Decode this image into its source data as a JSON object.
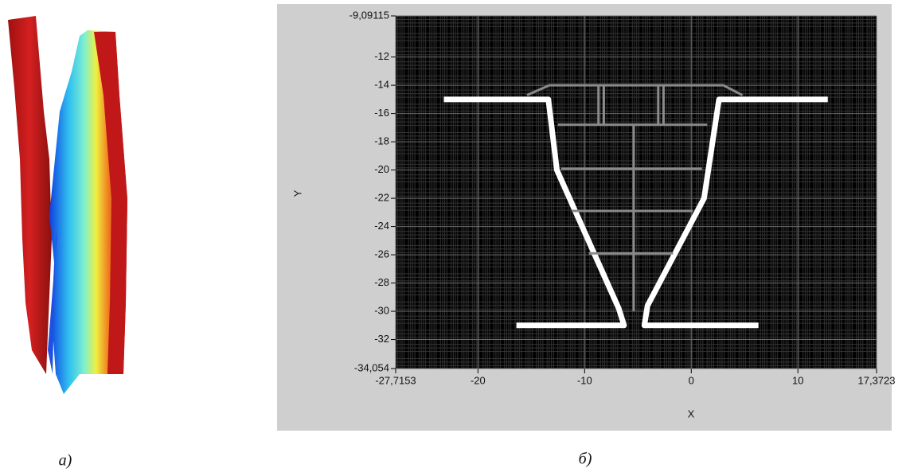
{
  "captions": [
    "а)",
    "б)"
  ],
  "chart_data": {
    "type": "line",
    "xlabel": "X",
    "ylabel": "Y",
    "xlim": [
      -27.7153,
      17.3723
    ],
    "ylim": [
      -34.054,
      -9.09115
    ],
    "xticks": [
      {
        "value": -27.7153,
        "label": "-27,7153"
      },
      -20,
      -10,
      0,
      10,
      {
        "value": 17.3723,
        "label": "17,3723"
      }
    ],
    "yticks": [
      {
        "value": -34.054,
        "label": "-34,054"
      },
      -32,
      -30,
      -28,
      -26,
      -24,
      -22,
      -20,
      -18,
      -16,
      -14,
      -12,
      {
        "value": -9.09115,
        "label": "-9,09115"
      }
    ],
    "grid": true,
    "series": [
      {
        "color": "#ffffff",
        "width": 7,
        "x": [
          -23.2,
          -13.4,
          -12.6,
          -6.8,
          -6.3,
          -16.4,
          null,
          12.8,
          2.6,
          1.2,
          -4.1,
          -4.4,
          6.3
        ],
        "y": [
          -15,
          -15,
          -20,
          -29.8,
          -31,
          -31,
          null,
          -15,
          -15,
          -22,
          -29.6,
          -31,
          -31
        ]
      },
      {
        "color": "#8a8a8a",
        "width": 3,
        "x": [
          -15.4,
          -13.3,
          3.0,
          4.8,
          null,
          -8.7,
          -8.7,
          null,
          -8.2,
          -8.2,
          null,
          -3.1,
          -3.1,
          null,
          -2.6,
          -2.6,
          null,
          -12.5,
          1.5,
          null,
          -12.2,
          1.0,
          null,
          -11.2,
          0.15,
          null,
          -9.6,
          -1.7,
          null,
          -5.4,
          -5.4,
          -5.4
        ],
        "y": [
          -14.7,
          -14,
          -14,
          -14.7,
          null,
          -14,
          -16.8,
          null,
          -14,
          -16.8,
          null,
          -14,
          -16.8,
          null,
          -14,
          -16.8,
          null,
          -16.8,
          -16.8,
          null,
          -19.9,
          -19.9,
          null,
          -22.9,
          -22.9,
          null,
          -25.9,
          -25.9,
          null,
          -16.8,
          -25.9,
          -30
        ]
      }
    ]
  }
}
